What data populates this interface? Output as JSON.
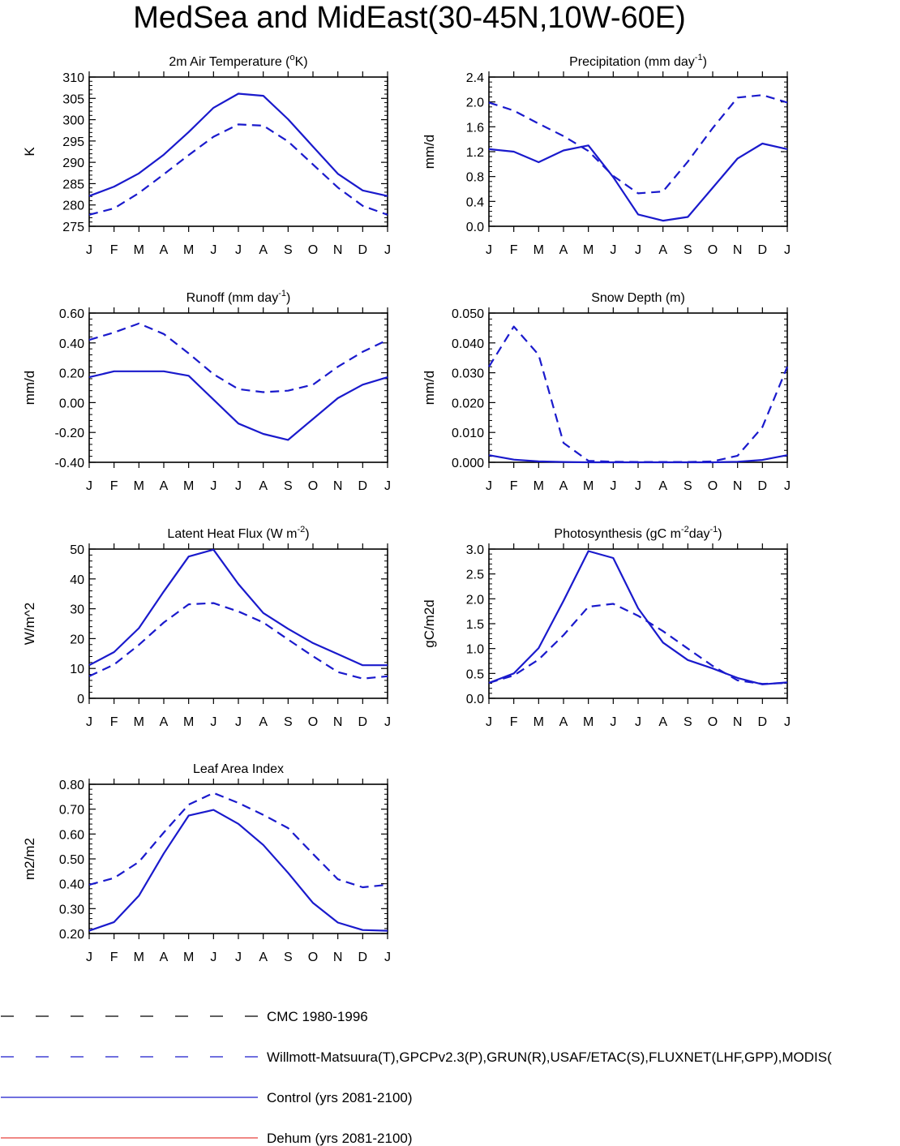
{
  "figure": {
    "title": "MedSea and MidEast(30-45N,10W-60E)"
  },
  "styles": {
    "cmc": "#000000",
    "obs": "#1a1acc",
    "control": "#1a1acc",
    "dehum": "#e8413c"
  },
  "chart_data": [
    {
      "type": "line",
      "title": "2m Air Temperature (°K)",
      "title_parts": [
        "2m Air Temperature (",
        "o",
        "K)"
      ],
      "ylabel": "K",
      "ylim": [
        275,
        310
      ],
      "yticks": [
        "275",
        "280",
        "285",
        "290",
        "295",
        "300",
        "305",
        "310"
      ],
      "categories": [
        "J",
        "F",
        "M",
        "A",
        "M",
        "J",
        "J",
        "A",
        "S",
        "O",
        "N",
        "D",
        "J"
      ],
      "series": [
        {
          "name": "observed",
          "style": "dashed",
          "values": [
            277.7,
            279.2,
            282.8,
            287.2,
            291.7,
            296.0,
            298.9,
            298.6,
            294.9,
            289.5,
            284.1,
            279.8,
            277.7
          ]
        },
        {
          "name": "control",
          "style": "solid",
          "values": [
            282.1,
            284.3,
            287.4,
            291.8,
            297.1,
            302.8,
            306.1,
            305.6,
            300.1,
            293.7,
            287.3,
            283.4,
            282.1
          ]
        }
      ]
    },
    {
      "type": "line",
      "title": "Precipitation (mm day-1)",
      "title_parts": [
        "Precipitation (mm day",
        "-1",
        ")"
      ],
      "ylabel": "mm/d",
      "ylim": [
        0,
        2.4
      ],
      "yticks": [
        "0.0",
        "0.4",
        "0.8",
        "1.2",
        "1.6",
        "2.0",
        "2.4"
      ],
      "categories": [
        "J",
        "F",
        "M",
        "A",
        "M",
        "J",
        "J",
        "A",
        "S",
        "O",
        "N",
        "D",
        "J"
      ],
      "series": [
        {
          "name": "observed",
          "style": "dashed",
          "values": [
            1.99,
            1.86,
            1.65,
            1.45,
            1.21,
            0.81,
            0.53,
            0.56,
            1.04,
            1.58,
            2.07,
            2.11,
            1.99
          ]
        },
        {
          "name": "control",
          "style": "solid",
          "values": [
            1.24,
            1.2,
            1.03,
            1.22,
            1.3,
            0.79,
            0.19,
            0.09,
            0.15,
            0.62,
            1.09,
            1.33,
            1.24
          ]
        }
      ]
    },
    {
      "type": "line",
      "title": "Runoff (mm day-1)",
      "title_parts": [
        "Runoff (mm day",
        "-1",
        ")"
      ],
      "ylabel": "mm/d",
      "ylim": [
        -0.4,
        0.6
      ],
      "yticks": [
        "-0.40",
        "-0.20",
        "0.00",
        "0.20",
        "0.40",
        "0.60"
      ],
      "categories": [
        "J",
        "F",
        "M",
        "A",
        "M",
        "J",
        "J",
        "A",
        "S",
        "O",
        "N",
        "D",
        "J"
      ],
      "series": [
        {
          "name": "observed",
          "style": "dashed",
          "values": [
            0.42,
            0.47,
            0.53,
            0.46,
            0.33,
            0.19,
            0.09,
            0.07,
            0.08,
            0.12,
            0.24,
            0.34,
            0.42
          ]
        },
        {
          "name": "control",
          "style": "solid",
          "values": [
            0.17,
            0.21,
            0.21,
            0.21,
            0.18,
            0.02,
            -0.14,
            -0.21,
            -0.25,
            -0.11,
            0.03,
            0.12,
            0.17
          ]
        }
      ]
    },
    {
      "type": "line",
      "title": "Snow Depth (m)",
      "title_parts": [
        "Snow Depth (m)",
        "",
        ""
      ],
      "ylabel": "mm/d",
      "ylim": [
        0,
        0.05
      ],
      "yticks": [
        "0.000",
        "0.010",
        "0.020",
        "0.030",
        "0.040",
        "0.050"
      ],
      "categories": [
        "J",
        "F",
        "M",
        "A",
        "M",
        "J",
        "J",
        "A",
        "S",
        "O",
        "N",
        "D",
        "J"
      ],
      "series": [
        {
          "name": "observed",
          "style": "dashed",
          "values": [
            0.032,
            0.0455,
            0.036,
            0.0065,
            0.0005,
            0.0002,
            0.0001,
            0.0001,
            0.0001,
            0.0003,
            0.0022,
            0.0118,
            0.032
          ]
        },
        {
          "name": "control",
          "style": "solid",
          "values": [
            0.0024,
            0.0009,
            0.0003,
            0.0001,
            0.0,
            0.0,
            0.0,
            0.0,
            0.0,
            0.0,
            0.0002,
            0.0008,
            0.0024
          ]
        }
      ]
    },
    {
      "type": "line",
      "title": "Latent Heat Flux (W m-2)",
      "title_parts": [
        "Latent Heat Flux (W m",
        "-2",
        ")"
      ],
      "ylabel": "W/m^2",
      "ylim": [
        0,
        50
      ],
      "yticks": [
        "0",
        "10",
        "20",
        "30",
        "40",
        "50"
      ],
      "categories": [
        "J",
        "F",
        "M",
        "A",
        "M",
        "J",
        "J",
        "A",
        "S",
        "O",
        "N",
        "D",
        "J"
      ],
      "series": [
        {
          "name": "observed",
          "style": "dashed",
          "values": [
            7.4,
            11.3,
            17.9,
            25.4,
            31.5,
            31.9,
            29.1,
            25.4,
            19.7,
            14.1,
            8.8,
            6.6,
            7.4
          ]
        },
        {
          "name": "control",
          "style": "solid",
          "values": [
            11.1,
            15.5,
            23.5,
            35.8,
            47.5,
            49.8,
            38.3,
            28.6,
            23.3,
            18.5,
            14.8,
            11.1,
            11.1
          ]
        }
      ]
    },
    {
      "type": "line",
      "title": "Photosynthesis (gC m-2day-1)",
      "title_parts": [
        "Photosynthesis (gC m",
        "-2",
        "day",
        "-1",
        ")"
      ],
      "ylabel": "gC/m2d",
      "ylim": [
        0,
        3.0
      ],
      "yticks": [
        "0.0",
        "0.5",
        "1.0",
        "1.5",
        "2.0",
        "2.5",
        "3.0"
      ],
      "categories": [
        "J",
        "F",
        "M",
        "A",
        "M",
        "J",
        "J",
        "A",
        "S",
        "O",
        "N",
        "D",
        "J"
      ],
      "series": [
        {
          "name": "observed",
          "style": "dashed",
          "values": [
            0.31,
            0.46,
            0.78,
            1.27,
            1.84,
            1.9,
            1.66,
            1.35,
            1.0,
            0.65,
            0.36,
            0.29,
            0.31
          ]
        },
        {
          "name": "control",
          "style": "solid",
          "values": [
            0.31,
            0.5,
            1.01,
            1.96,
            2.96,
            2.82,
            1.81,
            1.12,
            0.77,
            0.6,
            0.41,
            0.28,
            0.32
          ]
        }
      ]
    },
    {
      "type": "line",
      "title": "Leaf Area Index",
      "title_parts": [
        "Leaf Area Index",
        "",
        ""
      ],
      "ylabel": "m2/m2",
      "ylim": [
        0.2,
        0.8
      ],
      "yticks": [
        "0.20",
        "0.30",
        "0.40",
        "0.50",
        "0.60",
        "0.70",
        "0.80"
      ],
      "categories": [
        "J",
        "F",
        "M",
        "A",
        "M",
        "J",
        "J",
        "A",
        "S",
        "O",
        "N",
        "D",
        "J"
      ],
      "series": [
        {
          "name": "observed",
          "style": "dashed",
          "values": [
            0.396,
            0.423,
            0.488,
            0.606,
            0.718,
            0.765,
            0.725,
            0.677,
            0.624,
            0.52,
            0.418,
            0.386,
            0.396
          ]
        },
        {
          "name": "control",
          "style": "solid",
          "values": [
            0.211,
            0.246,
            0.352,
            0.522,
            0.674,
            0.697,
            0.641,
            0.556,
            0.444,
            0.323,
            0.244,
            0.214,
            0.211
          ]
        }
      ]
    }
  ],
  "legend": [
    {
      "label": "CMC 1980-1996",
      "color_key": "cmc",
      "style": "dashed"
    },
    {
      "label": "Willmott-Matsuura(T),GPCPv2.3(P),GRUN(R),USAF/ETAC(S),FLUXNET(LHF,GPP),MODIS(",
      "color_key": "obs",
      "style": "dashed"
    },
    {
      "label": "Control (yrs 2081-2100)",
      "color_key": "control",
      "style": "solid"
    },
    {
      "label": "Dehum (yrs 2081-2100)",
      "color_key": "dehum",
      "style": "solid"
    }
  ]
}
